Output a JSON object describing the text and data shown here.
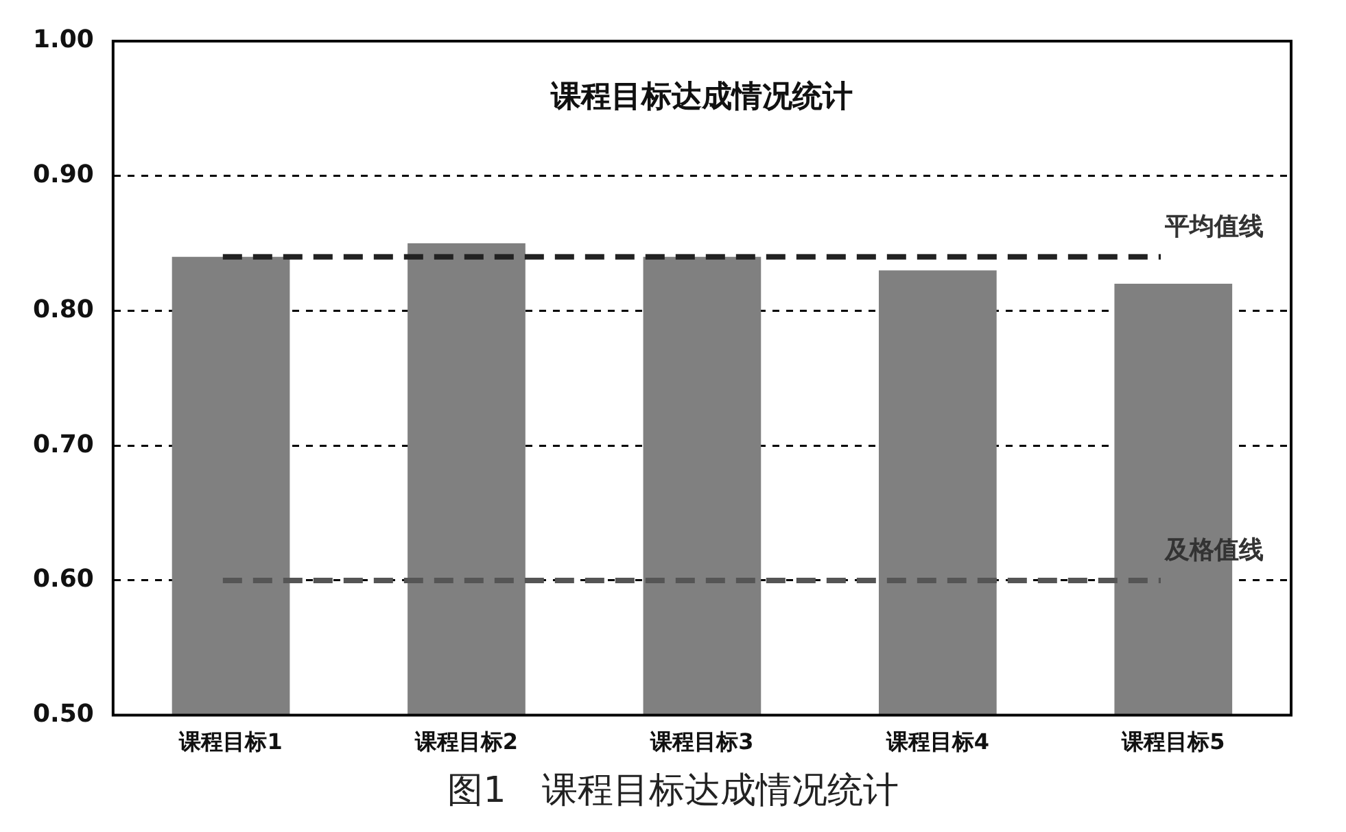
{
  "chart_data": {
    "type": "bar",
    "title": "课程目标达成情况统计",
    "categories": [
      "课程目标1",
      "课程目标2",
      "课程目标3",
      "课程目标4",
      "课程目标5"
    ],
    "values": [
      0.84,
      0.85,
      0.84,
      0.83,
      0.82
    ],
    "color": "#808080",
    "ylim": [
      0.5,
      1.0
    ],
    "yticks": [
      {
        "value": 0.5,
        "label": "0.50"
      },
      {
        "value": 0.6,
        "label": "0.60"
      },
      {
        "value": 0.7,
        "label": "0.70"
      },
      {
        "value": 0.8,
        "label": "0.80"
      },
      {
        "value": 0.9,
        "label": "0.90"
      },
      {
        "value": 1.0,
        "label": "1.00"
      }
    ],
    "grid": "y",
    "legend": false,
    "ref_lines": [
      {
        "axis": "y",
        "value": 0.84,
        "label": "平均值线",
        "color": "#222222",
        "line_style": "dashed"
      },
      {
        "axis": "y",
        "value": 0.6,
        "label": "及格值线",
        "color": "#555555",
        "line_style": "dashed"
      }
    ],
    "annotations": [
      "图1　课程目标达成情况统计"
    ]
  }
}
